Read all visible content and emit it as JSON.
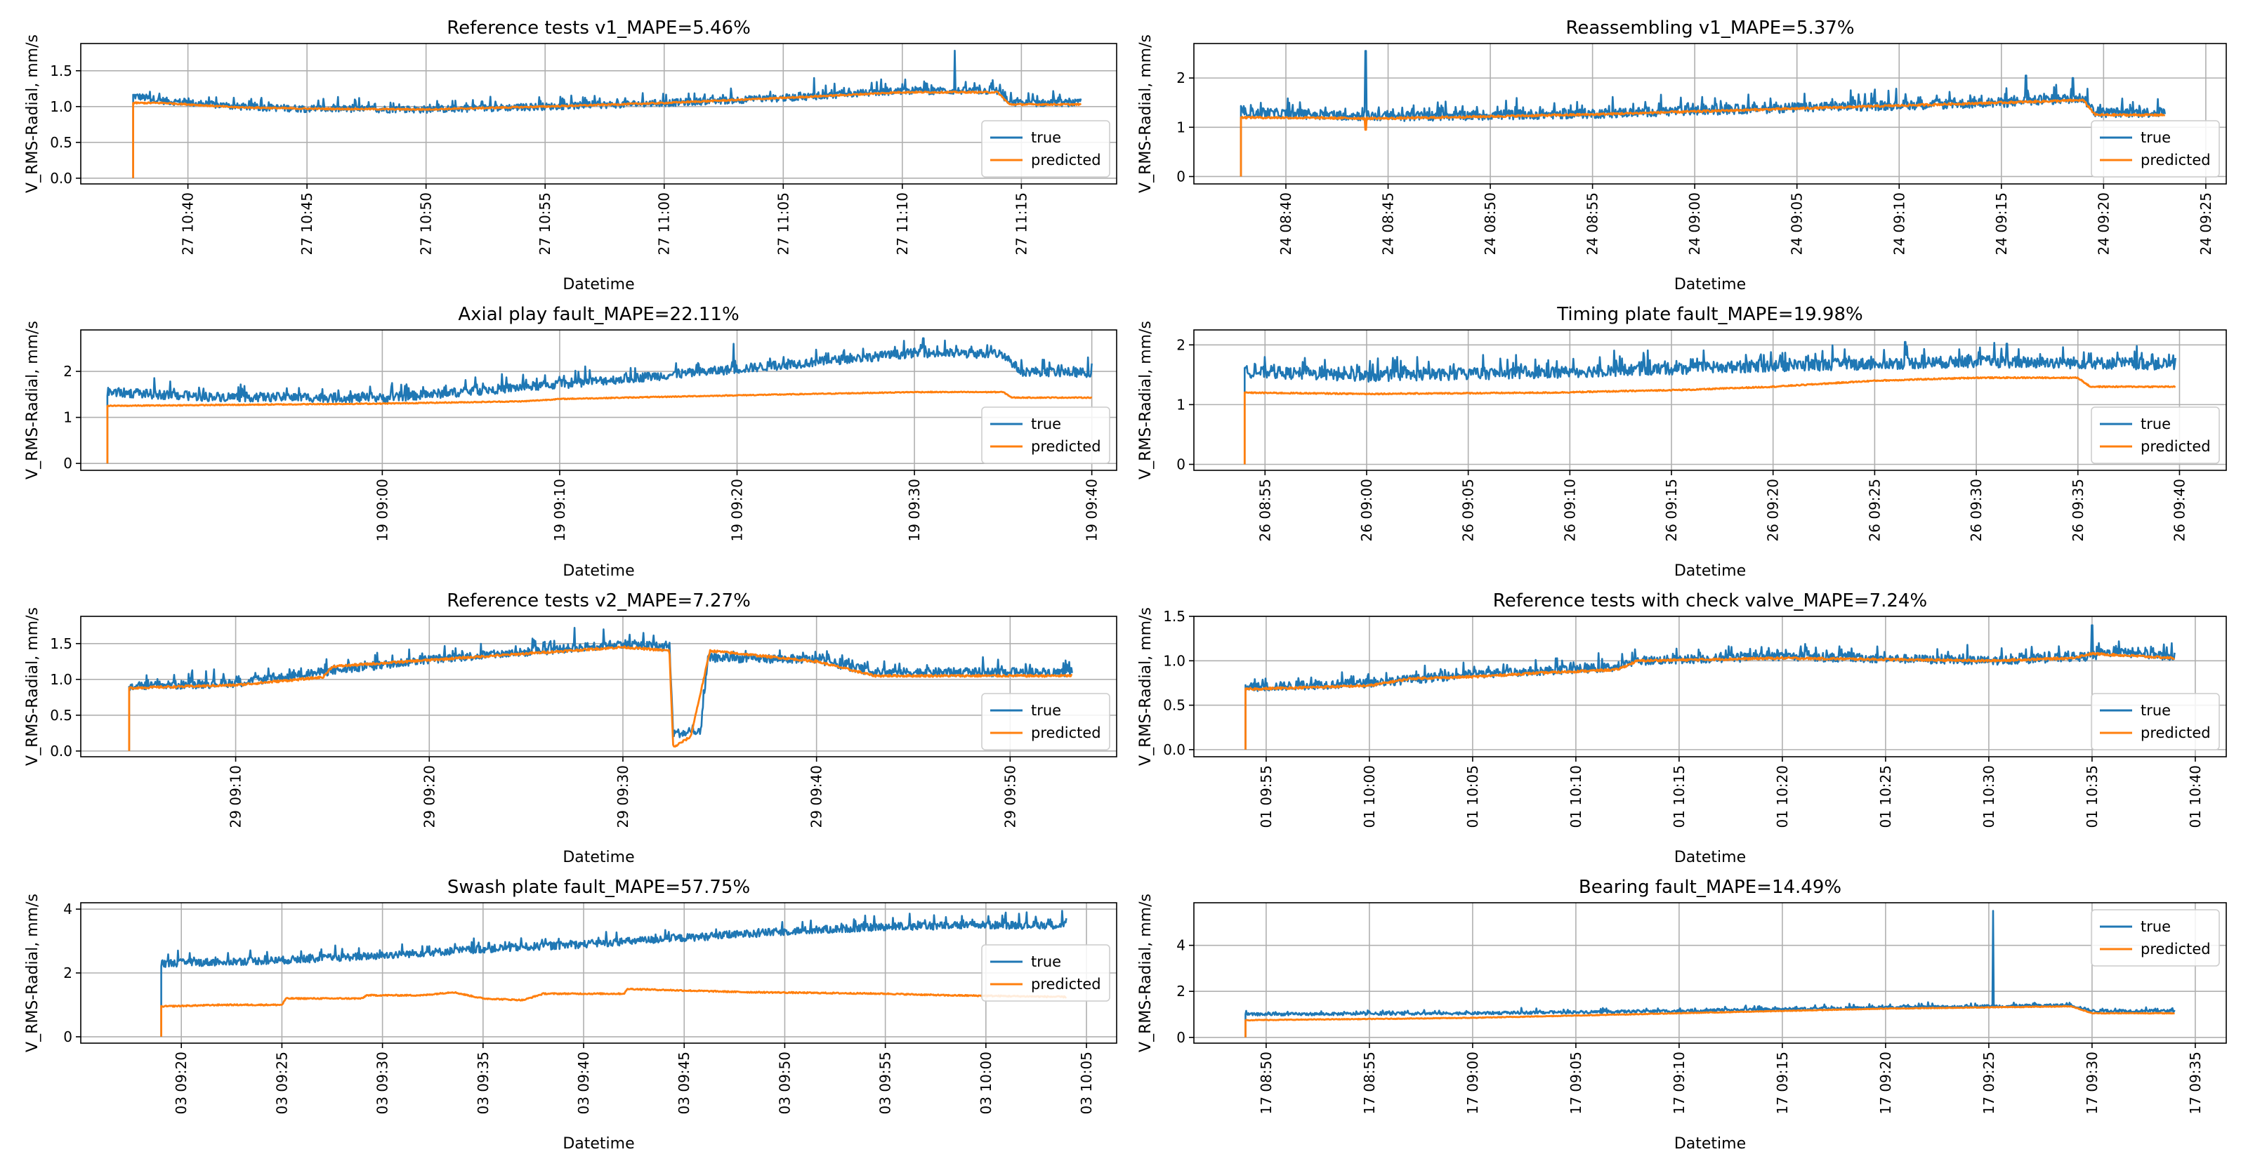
{
  "figure": {
    "series_names": [
      "true",
      "predicted"
    ],
    "colors": {
      "true": "#1f77b4",
      "predicted": "#ff7f0e"
    },
    "xlabel": "Datetime",
    "ylabel": "V_RMS-Radial, mm/s"
  },
  "chart_data": [
    {
      "type": "line",
      "title": "Reference tests v1_MAPE=5.46%",
      "xlabel": "Datetime",
      "ylabel": "V_RMS-Radial, mm/s",
      "x_start_min": 37.7,
      "x_end_min": 77.5,
      "xlim": [
        35.5,
        79.0
      ],
      "ylim": [
        -0.08,
        1.88
      ],
      "yticks": [
        0.0,
        0.5,
        1.0,
        1.5
      ],
      "ytick_labels": [
        "0.0",
        "0.5",
        "1.0",
        "1.5"
      ],
      "xticks": [
        40,
        45,
        50,
        55,
        60,
        65,
        70,
        75
      ],
      "xtick_labels": [
        "27 10:40",
        "27 10:45",
        "27 10:50",
        "27 10:55",
        "27 11:00",
        "27 11:05",
        "27 11:10",
        "27 11:15"
      ],
      "legend": "lower right",
      "true_knots": [
        [
          37.7,
          1.15
        ],
        [
          39,
          1.08
        ],
        [
          42,
          1.0
        ],
        [
          45,
          0.97
        ],
        [
          50,
          0.96
        ],
        [
          55,
          1.0
        ],
        [
          60,
          1.05
        ],
        [
          65,
          1.12
        ],
        [
          70,
          1.22
        ],
        [
          74,
          1.22
        ],
        [
          74.5,
          1.05
        ],
        [
          77.5,
          1.05
        ]
      ],
      "pred_knots": [
        [
          37.7,
          1.05
        ],
        [
          39,
          1.05
        ],
        [
          42,
          0.99
        ],
        [
          45,
          0.97
        ],
        [
          50,
          0.96
        ],
        [
          55,
          1.0
        ],
        [
          60,
          1.05
        ],
        [
          65,
          1.12
        ],
        [
          70,
          1.2
        ],
        [
          74,
          1.2
        ],
        [
          74.5,
          1.03
        ],
        [
          77.5,
          1.03
        ]
      ],
      "true_noise": 0.05,
      "pred_noise": 0.01,
      "spikes": [
        [
          72.2,
          1.78
        ],
        [
          66.3,
          1.4
        ],
        [
          69.1,
          1.38
        ]
      ],
      "dips": []
    },
    {
      "type": "line",
      "title": "Reassembling v1_MAPE=5.37%",
      "xlabel": "Datetime",
      "ylabel": "V_RMS-Radial, mm/s",
      "x_start_min": 37.8,
      "x_end_min": 83.0,
      "xlim": [
        35.5,
        86.0
      ],
      "ylim": [
        -0.15,
        2.7
      ],
      "yticks": [
        0,
        1,
        2
      ],
      "ytick_labels": [
        "0",
        "1",
        "2"
      ],
      "xticks": [
        40,
        45,
        50,
        55,
        60,
        65,
        70,
        75,
        80,
        85
      ],
      "xtick_labels": [
        "24 08:40",
        "24 08:45",
        "24 08:50",
        "24 08:55",
        "24 09:00",
        "24 09:05",
        "24 09:10",
        "24 09:15",
        "24 09:20",
        "24 09:25"
      ],
      "legend": "lower right",
      "true_knots": [
        [
          37.8,
          1.3
        ],
        [
          45,
          1.22
        ],
        [
          55,
          1.28
        ],
        [
          65,
          1.4
        ],
        [
          75,
          1.5
        ],
        [
          79,
          1.6
        ],
        [
          79.6,
          1.3
        ],
        [
          83,
          1.3
        ]
      ],
      "pred_knots": [
        [
          37.8,
          1.2
        ],
        [
          45,
          1.18
        ],
        [
          55,
          1.26
        ],
        [
          65,
          1.38
        ],
        [
          75,
          1.5
        ],
        [
          79,
          1.55
        ],
        [
          79.6,
          1.25
        ],
        [
          83,
          1.25
        ]
      ],
      "true_noise": 0.1,
      "pred_noise": 0.02,
      "spikes": [
        [
          43.9,
          2.55
        ],
        [
          76.2,
          2.05
        ],
        [
          78.5,
          2.0
        ]
      ],
      "dips": [
        [
          43.9,
          0.95
        ]
      ]
    },
    {
      "type": "line",
      "title": "Axial play fault_MAPE=22.11%",
      "xlabel": "Datetime",
      "ylabel": "V_RMS-Radial, mm/s",
      "x_start_min": 44.5,
      "x_end_min": 100.0,
      "xlim": [
        43.0,
        101.4
      ],
      "ylim": [
        -0.15,
        2.9
      ],
      "yticks": [
        0,
        1,
        2
      ],
      "ytick_labels": [
        "0",
        "1",
        "2"
      ],
      "xticks": [
        60,
        70,
        80,
        90,
        100
      ],
      "xtick_labels": [
        "19 09:00",
        "19 09:10",
        "19 09:20",
        "19 09:30",
        "19 09:40"
      ],
      "legend": "lower right",
      "true_knots": [
        [
          44.5,
          1.55
        ],
        [
          50,
          1.45
        ],
        [
          60,
          1.42
        ],
        [
          70,
          1.72
        ],
        [
          80,
          2.05
        ],
        [
          90,
          2.4
        ],
        [
          95,
          2.38
        ],
        [
          96,
          2.0
        ],
        [
          100,
          1.97
        ]
      ],
      "pred_knots": [
        [
          44.5,
          1.25
        ],
        [
          60,
          1.3
        ],
        [
          68,
          1.35
        ],
        [
          70,
          1.4
        ],
        [
          80,
          1.48
        ],
        [
          90,
          1.55
        ],
        [
          95,
          1.55
        ],
        [
          95.5,
          1.43
        ],
        [
          100,
          1.43
        ]
      ],
      "true_noise": 0.1,
      "pred_noise": 0.01,
      "spikes": [
        [
          79.8,
          2.6
        ],
        [
          90.5,
          2.72
        ]
      ],
      "dips": []
    },
    {
      "type": "line",
      "title": "Timing plate fault_MAPE=19.98%",
      "xlabel": "Datetime",
      "ylabel": "V_RMS-Radial, mm/s",
      "x_start_min": 54.0,
      "x_end_min": 99.8,
      "xlim": [
        51.5,
        102.3
      ],
      "ylim": [
        -0.1,
        2.25
      ],
      "yticks": [
        0,
        1,
        2
      ],
      "ytick_labels": [
        "0",
        "1",
        "2"
      ],
      "xticks": [
        55,
        60,
        65,
        70,
        75,
        80,
        85,
        90,
        95,
        100
      ],
      "xtick_labels": [
        "26 08:55",
        "26 09:00",
        "26 09:05",
        "26 09:10",
        "26 09:15",
        "26 09:20",
        "26 09:25",
        "26 09:30",
        "26 09:35",
        "26 09:40"
      ],
      "legend": "lower right",
      "true_knots": [
        [
          54,
          1.55
        ],
        [
          60,
          1.48
        ],
        [
          70,
          1.55
        ],
        [
          80,
          1.65
        ],
        [
          90,
          1.72
        ],
        [
          99.8,
          1.68
        ]
      ],
      "pred_knots": [
        [
          54,
          1.2
        ],
        [
          60,
          1.18
        ],
        [
          69,
          1.2
        ],
        [
          76,
          1.25
        ],
        [
          80,
          1.3
        ],
        [
          85,
          1.4
        ],
        [
          90,
          1.45
        ],
        [
          95,
          1.45
        ],
        [
          95.6,
          1.3
        ],
        [
          99.8,
          1.3
        ]
      ],
      "true_noise": 0.1,
      "pred_noise": 0.01,
      "spikes": [
        [
          86.5,
          2.05
        ],
        [
          91.5,
          2.02
        ]
      ],
      "dips": []
    },
    {
      "type": "line",
      "title": "Reference tests v2_MAPE=7.27%",
      "xlabel": "Datetime",
      "ylabel": "V_RMS-Radial, mm/s",
      "x_start_min": 4.5,
      "x_end_min": 53.2,
      "xlim": [
        2.0,
        55.5
      ],
      "ylim": [
        -0.08,
        1.88
      ],
      "yticks": [
        0.0,
        0.5,
        1.0,
        1.5
      ],
      "ytick_labels": [
        "0.0",
        "0.5",
        "1.0",
        "1.5"
      ],
      "xticks": [
        10,
        20,
        30,
        40,
        50
      ],
      "xtick_labels": [
        "29 09:10",
        "29 09:20",
        "29 09:30",
        "29 09:40",
        "29 09:50"
      ],
      "legend": "lower right",
      "true_knots": [
        [
          4.5,
          0.9
        ],
        [
          10,
          0.95
        ],
        [
          15,
          1.12
        ],
        [
          20,
          1.28
        ],
        [
          25,
          1.38
        ],
        [
          30,
          1.5
        ],
        [
          32.4,
          1.45
        ],
        [
          32.6,
          0.25
        ],
        [
          34,
          0.25
        ],
        [
          34.4,
          1.3
        ],
        [
          40,
          1.28
        ],
        [
          43,
          1.1
        ],
        [
          53.2,
          1.1
        ]
      ],
      "pred_knots": [
        [
          4.5,
          0.88
        ],
        [
          10,
          0.92
        ],
        [
          14.5,
          1.03
        ],
        [
          15,
          1.18
        ],
        [
          20,
          1.27
        ],
        [
          25,
          1.36
        ],
        [
          30,
          1.45
        ],
        [
          32.4,
          1.4
        ],
        [
          32.6,
          0.05
        ],
        [
          33.5,
          0.2
        ],
        [
          34,
          0.8
        ],
        [
          34.5,
          1.4
        ],
        [
          40,
          1.25
        ],
        [
          43,
          1.05
        ],
        [
          53.2,
          1.05
        ]
      ],
      "true_noise": 0.06,
      "pred_noise": 0.015,
      "spikes": [
        [
          27.5,
          1.72
        ],
        [
          29,
          1.7
        ]
      ],
      "dips": []
    },
    {
      "type": "line",
      "title": "Reference tests with check valve_MAPE=7.24%",
      "xlabel": "Datetime",
      "ylabel": "V_RMS-Radial, mm/s",
      "x_start_min": 54.0,
      "x_end_min": 99.0,
      "xlim": [
        51.5,
        101.5
      ],
      "ylim": [
        -0.08,
        1.5
      ],
      "yticks": [
        0.0,
        0.5,
        1.0,
        1.5
      ],
      "ytick_labels": [
        "0.0",
        "0.5",
        "1.0",
        "1.5"
      ],
      "xticks": [
        55,
        60,
        65,
        70,
        75,
        80,
        85,
        90,
        95,
        100
      ],
      "xtick_labels": [
        "01 09:55",
        "01 10:00",
        "01 10:05",
        "01 10:10",
        "01 10:15",
        "01 10:20",
        "01 10:25",
        "01 10:30",
        "01 10:35",
        "01 10:40"
      ],
      "legend": "lower right",
      "true_knots": [
        [
          54,
          0.7
        ],
        [
          60,
          0.75
        ],
        [
          65,
          0.85
        ],
        [
          72,
          0.93
        ],
        [
          73,
          1.0
        ],
        [
          80,
          1.05
        ],
        [
          90,
          1.0
        ],
        [
          95,
          1.05
        ],
        [
          96,
          1.1
        ],
        [
          99,
          1.05
        ]
      ],
      "pred_knots": [
        [
          54,
          0.68
        ],
        [
          60,
          0.72
        ],
        [
          62,
          0.8
        ],
        [
          65,
          0.82
        ],
        [
          68,
          0.86
        ],
        [
          72,
          0.9
        ],
        [
          73,
          1.0
        ],
        [
          80,
          1.03
        ],
        [
          90,
          1.0
        ],
        [
          94,
          1.03
        ],
        [
          95,
          1.08
        ],
        [
          99,
          1.03
        ]
      ],
      "true_noise": 0.05,
      "pred_noise": 0.012,
      "spikes": [
        [
          95,
          1.4
        ]
      ],
      "dips": []
    },
    {
      "type": "line",
      "title": "Swash plate fault_MAPE=57.75%",
      "xlabel": "Datetime",
      "ylabel": "V_RMS-Radial, mm/s",
      "x_start_min": 19.0,
      "x_end_min": 64.0,
      "xlim": [
        15.0,
        66.5
      ],
      "ylim": [
        -0.2,
        4.2
      ],
      "yticks": [
        0,
        2,
        4
      ],
      "ytick_labels": [
        "0",
        "2",
        "4"
      ],
      "xticks": [
        20,
        25,
        30,
        35,
        40,
        45,
        50,
        55,
        60,
        65
      ],
      "xtick_labels": [
        "03 09:20",
        "03 09:25",
        "03 09:30",
        "03 09:35",
        "03 09:40",
        "03 09:45",
        "03 09:50",
        "03 09:55",
        "03 10:00",
        "03 10:05"
      ],
      "legend": "right",
      "true_knots": [
        [
          19,
          2.3
        ],
        [
          25,
          2.4
        ],
        [
          30,
          2.55
        ],
        [
          35,
          2.75
        ],
        [
          40,
          2.9
        ],
        [
          45,
          3.1
        ],
        [
          50,
          3.3
        ],
        [
          55,
          3.45
        ],
        [
          60,
          3.5
        ],
        [
          64,
          3.5
        ]
      ],
      "pred_knots": [
        [
          19,
          0.95
        ],
        [
          22,
          1.0
        ],
        [
          25,
          1.0
        ],
        [
          25.2,
          1.2
        ],
        [
          29,
          1.2
        ],
        [
          29.2,
          1.3
        ],
        [
          32,
          1.3
        ],
        [
          33.5,
          1.4
        ],
        [
          35,
          1.2
        ],
        [
          37,
          1.15
        ],
        [
          38,
          1.35
        ],
        [
          42,
          1.35
        ],
        [
          42.2,
          1.5
        ],
        [
          45,
          1.45
        ],
        [
          48,
          1.4
        ],
        [
          55,
          1.35
        ],
        [
          58,
          1.3
        ],
        [
          64,
          1.25
        ]
      ],
      "true_noise": 0.12,
      "pred_noise": 0.02,
      "spikes": [
        [
          63.8,
          3.95
        ],
        [
          54,
          3.8
        ]
      ],
      "dips": []
    },
    {
      "type": "line",
      "title": "Bearing fault_MAPE=14.49%",
      "xlabel": "Datetime",
      "ylabel": "V_RMS-Radial, mm/s",
      "x_start_min": 49.0,
      "x_end_min": 94.0,
      "xlim": [
        46.5,
        96.5
      ],
      "ylim": [
        -0.25,
        5.85
      ],
      "yticks": [
        0,
        2,
        4
      ],
      "ytick_labels": [
        "0",
        "2",
        "4"
      ],
      "xticks": [
        50,
        55,
        60,
        65,
        70,
        75,
        80,
        85,
        90,
        95
      ],
      "xtick_labels": [
        "17 08:50",
        "17 08:55",
        "17 09:00",
        "17 09:05",
        "17 09:10",
        "17 09:15",
        "17 09:20",
        "17 09:25",
        "17 09:30",
        "17 09:35"
      ],
      "legend": "upper right",
      "true_knots": [
        [
          49,
          1.0
        ],
        [
          60,
          1.05
        ],
        [
          70,
          1.15
        ],
        [
          80,
          1.3
        ],
        [
          89,
          1.4
        ],
        [
          90,
          1.15
        ],
        [
          94,
          1.15
        ]
      ],
      "pred_knots": [
        [
          49,
          0.75
        ],
        [
          55,
          0.8
        ],
        [
          60,
          0.85
        ],
        [
          65,
          0.95
        ],
        [
          70,
          1.05
        ],
        [
          75,
          1.15
        ],
        [
          80,
          1.25
        ],
        [
          89,
          1.35
        ],
        [
          90,
          1.05
        ],
        [
          94,
          1.05
        ]
      ],
      "true_noise": 0.06,
      "pred_noise": 0.015,
      "spikes": [
        [
          85.2,
          5.5
        ]
      ],
      "dips": []
    }
  ]
}
